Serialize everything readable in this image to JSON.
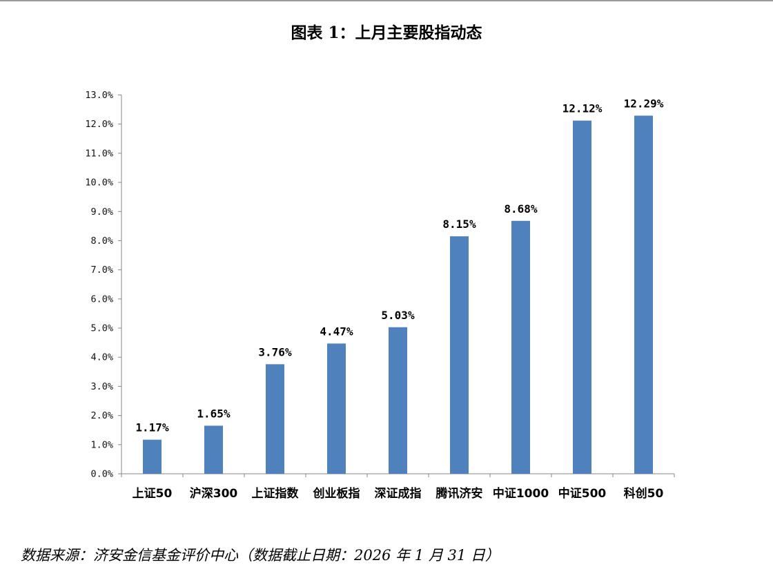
{
  "title": "图表 1：上月主要股指动态",
  "source": "数据来源：济安金信基金评价中心（数据截止日期：2026 年 1 月 31 日）",
  "colors": {
    "bar": "#4f81bd",
    "axis": "#878787",
    "text": "#000000"
  },
  "chart_data": {
    "type": "bar",
    "categories": [
      "上证50",
      "沪深300",
      "上证指数",
      "创业板指",
      "深证成指",
      "腾讯济安",
      "中证1000",
      "中证500",
      "科创50"
    ],
    "values": [
      1.17,
      1.65,
      3.76,
      4.47,
      5.03,
      8.15,
      8.68,
      12.12,
      12.29
    ],
    "data_labels": [
      "1.17%",
      "1.65%",
      "3.76%",
      "4.47%",
      "5.03%",
      "8.15%",
      "8.68%",
      "12.12%",
      "12.29%"
    ],
    "y_ticks": [
      "0.0%",
      "1.0%",
      "2.0%",
      "3.0%",
      "4.0%",
      "5.0%",
      "6.0%",
      "7.0%",
      "8.0%",
      "9.0%",
      "10.0%",
      "11.0%",
      "12.0%",
      "13.0%"
    ],
    "ylim": [
      0,
      13
    ],
    "unit": "%",
    "grid": false,
    "legend": "none"
  }
}
